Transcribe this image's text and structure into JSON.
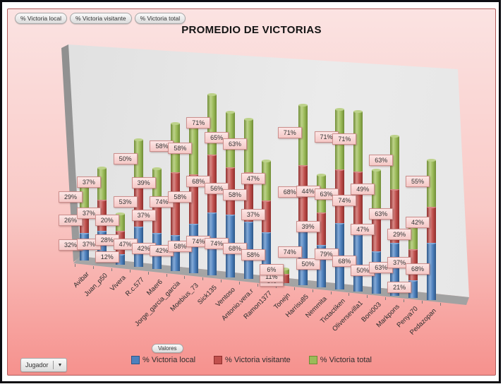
{
  "title": "PROMEDIO DE VICTORIAS",
  "field_buttons": [
    {
      "label": "% Victoria local"
    },
    {
      "label": "% Victoria visitante"
    },
    {
      "label": "% Victoria total"
    }
  ],
  "values_button": "Valores",
  "axis_field_button": {
    "label": "Jugador",
    "arrow": "▼"
  },
  "theme": {
    "canvas_top": "#fbe3e2",
    "canvas_bottom": "#f6918d",
    "canvas_border": "#b05a5a"
  },
  "legend": [
    {
      "label": "% Victoria local",
      "color": "#4e81bd",
      "border": "#2c5687"
    },
    {
      "label": "% Victoria visitante",
      "color": "#c0504d",
      "border": "#8f2e2c"
    },
    {
      "label": "% Victoria total",
      "color": "#9bbb59",
      "border": "#6f8c35"
    }
  ],
  "chart_data": {
    "type": "bar",
    "subtype": "3d-stacked-cylinder",
    "title": "PROMEDIO DE VICTORIAS",
    "xlabel": "Jugador",
    "ylabel": "",
    "data_labels": "percent",
    "legend_position": "bottom",
    "categories": [
      "Avibar",
      "Juan_p50",
      "Vivera",
      "R.c.577",
      "Maer6",
      "Jorge_garcia_garcia",
      "Moebius_73",
      "Sick135",
      "Ventoso",
      "Antonio.vera.r",
      "Ramon1377",
      "Tonejn",
      "Harrisu85",
      "Nemmita",
      "Tictactiken",
      "Oliversevilla1",
      "Boni003",
      "Markpons",
      "Penya70",
      "Pedazopan"
    ],
    "series": [
      {
        "name": "% Victoria local",
        "color": "#4e81bd",
        "color_light": "#85abd8",
        "color_dark": "#2c5687",
        "values": [
          32,
          37,
          12,
          47,
          42,
          42,
          58,
          74,
          74,
          68,
          58,
          0,
          74,
          50,
          79,
          68,
          50,
          63,
          21,
          68
        ]
      },
      {
        "name": "% Victoria visitante",
        "color": "#c0504d",
        "color_light": "#d88a87",
        "color_dark": "#8f2e2c",
        "values": [
          26,
          37,
          28,
          53,
          37,
          74,
          58,
          68,
          56,
          58,
          37,
          11,
          68,
          39,
          63,
          74,
          47,
          63,
          37,
          42
        ]
      },
      {
        "name": "% Victoria total",
        "color": "#9bbb59",
        "color_light": "#bdd28a",
        "color_dark": "#6f8c35",
        "values": [
          29,
          37,
          20,
          50,
          39,
          58,
          58,
          71,
          65,
          63,
          47,
          6,
          71,
          44,
          71,
          71,
          49,
          63,
          29,
          55
        ]
      }
    ]
  }
}
